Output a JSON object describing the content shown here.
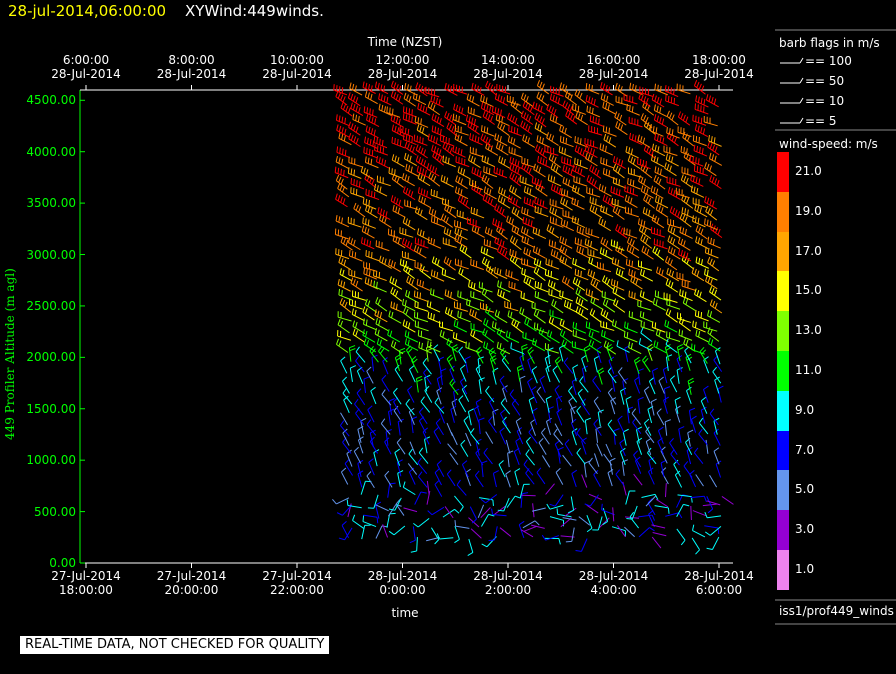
{
  "header": {
    "date": "28-jul-2014,06:00:00",
    "title": "XYWind:449winds."
  },
  "chart_data": {
    "type": "scatter",
    "title": "XYWind:449winds.",
    "top_axis": {
      "label": "Time (NZST)",
      "ticks": [
        {
          "time": "6:00:00",
          "date": "28-Jul-2014"
        },
        {
          "time": "8:00:00",
          "date": "28-Jul-2014"
        },
        {
          "time": "10:00:00",
          "date": "28-Jul-2014"
        },
        {
          "time": "12:00:00",
          "date": "28-Jul-2014"
        },
        {
          "time": "14:00:00",
          "date": "28-Jul-2014"
        },
        {
          "time": "16:00:00",
          "date": "28-Jul-2014"
        },
        {
          "time": "18:00:00",
          "date": "28-Jul-2014"
        }
      ]
    },
    "bottom_axis": {
      "label": "time",
      "ticks": [
        {
          "date": "27-Jul-2014",
          "time": "18:00:00"
        },
        {
          "date": "27-Jul-2014",
          "time": "20:00:00"
        },
        {
          "date": "27-Jul-2014",
          "time": "22:00:00"
        },
        {
          "date": "28-Jul-2014",
          "time": "0:00:00"
        },
        {
          "date": "28-Jul-2014",
          "time": "2:00:00"
        },
        {
          "date": "28-Jul-2014",
          "time": "4:00:00"
        },
        {
          "date": "28-Jul-2014",
          "time": "6:00:00"
        }
      ]
    },
    "y_axis": {
      "label": "449 Profiler Altitude (m agl)",
      "ticks": [
        "0.00",
        "500.00",
        "1000.00",
        "1500.00",
        "2000.00",
        "2500.00",
        "3000.00",
        "3500.00",
        "4000.00",
        "4500.00"
      ],
      "ylim": [
        0,
        4600
      ]
    },
    "data_hours_range": [
      23.0,
      30.0
    ],
    "altitude_rows": [
      250,
      350,
      450,
      550,
      650,
      750,
      850,
      950,
      1050,
      1150,
      1250,
      1350,
      1450,
      1550,
      1650,
      1750,
      1850,
      1950,
      2050,
      2150,
      2250,
      2350,
      2450,
      2550,
      2650,
      2750,
      2850,
      2950,
      3050,
      3150,
      3250,
      3350,
      3450,
      3550,
      3650,
      3750,
      3850,
      3950,
      4050,
      4150,
      4250,
      4350,
      4450,
      4550
    ],
    "speed_profile_ms": [
      {
        "alt": 300,
        "speed": 4
      },
      {
        "alt": 700,
        "speed": 6
      },
      {
        "alt": 1200,
        "speed": 7
      },
      {
        "alt": 1800,
        "speed": 8
      },
      {
        "alt": 2100,
        "speed": 12
      },
      {
        "alt": 2500,
        "speed": 15
      },
      {
        "alt": 3000,
        "speed": 18
      },
      {
        "alt": 3500,
        "speed": 19
      },
      {
        "alt": 4000,
        "speed": 20
      },
      {
        "alt": 4500,
        "speed": 21
      }
    ]
  },
  "legend": {
    "barb_title": "barb flags in m/s",
    "barbs": [
      {
        "label": "== 100"
      },
      {
        "label": "== 50"
      },
      {
        "label": "== 10"
      },
      {
        "label": "== 5"
      }
    ],
    "speed_title": "wind-speed: m/s",
    "colorbar": [
      {
        "label": "21.0",
        "color": "#ff0000"
      },
      {
        "label": "19.0",
        "color": "#ff7f00"
      },
      {
        "label": "17.0",
        "color": "#ffa500"
      },
      {
        "label": "15.0",
        "color": "#ffff00"
      },
      {
        "label": "13.0",
        "color": "#7fff00"
      },
      {
        "label": "11.0",
        "color": "#00ff00"
      },
      {
        "label": "9.0",
        "color": "#00ffff"
      },
      {
        "label": "7.0",
        "color": "#0000ff"
      },
      {
        "label": "5.0",
        "color": "#6495ed"
      },
      {
        "label": "3.0",
        "color": "#9400d3"
      },
      {
        "label": "1.0",
        "color": "#ee82ee"
      }
    ],
    "source": "iss1/prof449_winds"
  },
  "banner": "REAL-TIME DATA, NOT CHECKED FOR QUALITY"
}
